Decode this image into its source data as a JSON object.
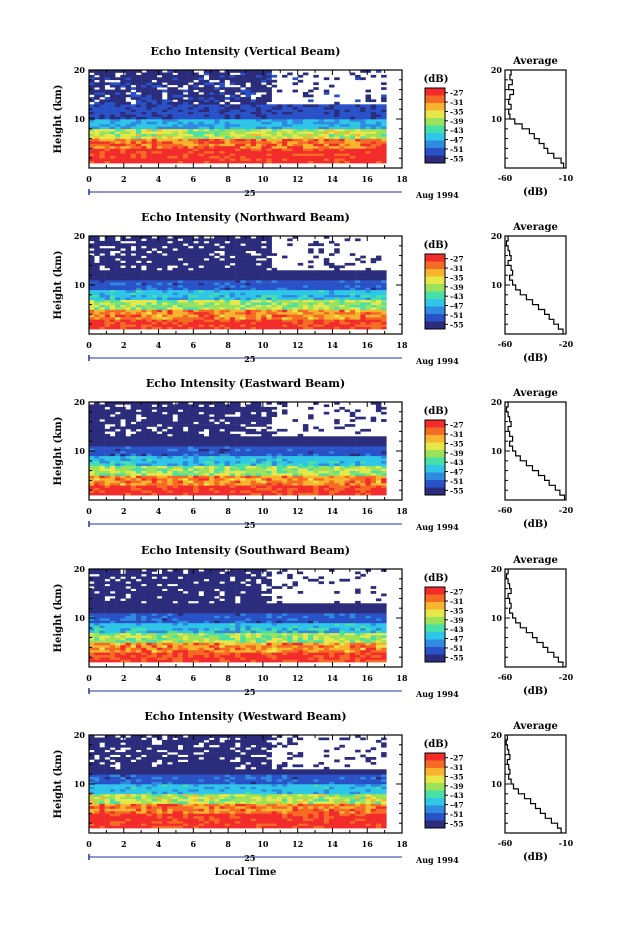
{
  "figure": {
    "xlabel": "Local Time",
    "date_label": "Aug 1994",
    "day_label": "25",
    "ylabel": "Height (km)",
    "colorbar_unit": "(dB)",
    "average_title": "Average",
    "average_xlabel": "(dB)"
  },
  "colors": {
    "colormap": [
      "#2b2c7c",
      "#2a52c8",
      "#2f8ae0",
      "#2fc6e8",
      "#47e0a8",
      "#9ae25a",
      "#e6e84a",
      "#f9b42e",
      "#f56b25",
      "#f22b2b"
    ]
  },
  "chart_data": [
    {
      "type": "heatmap",
      "title": "Echo Intensity (Vertical Beam)",
      "xlabel": "",
      "ylabel": "Height (km)",
      "xlim": [
        0,
        18
      ],
      "ylim": [
        0,
        20
      ],
      "data_x_range": [
        0,
        17
      ],
      "x_ticks": [
        "0",
        "2",
        "4",
        "6",
        "8",
        "10",
        "12",
        "14",
        "16",
        "18"
      ],
      "y_ticks": [
        "10",
        "20"
      ],
      "colorbar": {
        "label": "(dB)",
        "ticks": [
          "-27",
          "-31",
          "-35",
          "-39",
          "-43",
          "-47",
          "-51",
          "-55"
        ],
        "range": [
          -57,
          -25
        ]
      },
      "profile_db_by_height": [
        {
          "h": [
            1,
            4
          ],
          "db": -26
        },
        {
          "h": [
            4,
            6
          ],
          "db": -30
        },
        {
          "h": [
            6,
            8
          ],
          "db": -38
        },
        {
          "h": [
            8,
            10
          ],
          "db": -47
        },
        {
          "h": [
            10,
            13
          ],
          "db": -53
        },
        {
          "h": [
            13,
            20
          ],
          "db": -55
        }
      ],
      "average": {
        "title": "Average",
        "xlabel": "(dB)",
        "xlim": [
          -60,
          -10
        ],
        "x_ticks": [
          "-60",
          "-10"
        ],
        "y_ticks": [
          "10",
          "20"
        ],
        "heights": [
          1,
          2,
          3,
          4,
          5,
          6,
          7,
          8,
          9,
          10,
          11,
          12,
          13,
          14,
          15,
          16,
          17,
          18,
          19,
          20
        ],
        "values": [
          -12,
          -14,
          -20,
          -25,
          -28,
          -32,
          -36,
          -40,
          -46,
          -52,
          -56,
          -57,
          -55,
          -57,
          -56,
          -53,
          -57,
          -54,
          -56,
          -55
        ]
      }
    },
    {
      "type": "heatmap",
      "title": "Echo Intensity (Northward Beam)",
      "xlabel": "",
      "ylabel": "Height (km)",
      "xlim": [
        0,
        18
      ],
      "ylim": [
        0,
        20
      ],
      "data_x_range": [
        0,
        17
      ],
      "x_ticks": [
        "0",
        "2",
        "4",
        "6",
        "8",
        "10",
        "12",
        "14",
        "16",
        "18"
      ],
      "y_ticks": [
        "10",
        "20"
      ],
      "colorbar": {
        "label": "(dB)",
        "ticks": [
          "-27",
          "-31",
          "-35",
          "-39",
          "-43",
          "-47",
          "-51",
          "-55"
        ],
        "range": [
          -57,
          -25
        ]
      },
      "profile_db_by_height": [
        {
          "h": [
            1,
            3
          ],
          "db": -27
        },
        {
          "h": [
            3,
            5
          ],
          "db": -31
        },
        {
          "h": [
            5,
            7
          ],
          "db": -39
        },
        {
          "h": [
            7,
            9
          ],
          "db": -46
        },
        {
          "h": [
            9,
            11
          ],
          "db": -52
        },
        {
          "h": [
            11,
            20
          ],
          "db": -56
        }
      ],
      "average": {
        "title": "Average",
        "xlabel": "(dB)",
        "xlim": [
          -60,
          -20
        ],
        "x_ticks": [
          "-60",
          "-20"
        ],
        "y_ticks": [
          "10",
          "20"
        ],
        "heights": [
          1,
          2,
          3,
          4,
          5,
          6,
          7,
          8,
          9,
          10,
          11,
          12,
          13,
          14,
          15,
          16,
          17,
          18,
          19,
          20
        ],
        "values": [
          -22,
          -25,
          -28,
          -31,
          -34,
          -38,
          -42,
          -46,
          -50,
          -53,
          -55,
          -57,
          -55,
          -56,
          -58,
          -56,
          -57,
          -58,
          -59,
          -58
        ]
      }
    },
    {
      "type": "heatmap",
      "title": "Echo Intensity (Eastward Beam)",
      "xlabel": "",
      "ylabel": "Height (km)",
      "xlim": [
        0,
        18
      ],
      "ylim": [
        0,
        20
      ],
      "data_x_range": [
        0,
        17
      ],
      "x_ticks": [
        "0",
        "2",
        "4",
        "6",
        "8",
        "10",
        "12",
        "14",
        "16",
        "18"
      ],
      "y_ticks": [
        "10",
        "20"
      ],
      "colorbar": {
        "label": "(dB)",
        "ticks": [
          "-27",
          "-31",
          "-35",
          "-39",
          "-43",
          "-47",
          "-51",
          "-55"
        ],
        "range": [
          -57,
          -25
        ]
      },
      "profile_db_by_height": [
        {
          "h": [
            1,
            3
          ],
          "db": -27
        },
        {
          "h": [
            3,
            5
          ],
          "db": -31
        },
        {
          "h": [
            5,
            7
          ],
          "db": -39
        },
        {
          "h": [
            7,
            9
          ],
          "db": -46
        },
        {
          "h": [
            9,
            11
          ],
          "db": -52
        },
        {
          "h": [
            11,
            20
          ],
          "db": -56
        }
      ],
      "average": {
        "title": "Average",
        "xlabel": "(dB)",
        "xlim": [
          -60,
          -20
        ],
        "x_ticks": [
          "-60",
          "-20"
        ],
        "y_ticks": [
          "10",
          "20"
        ],
        "heights": [
          1,
          2,
          3,
          4,
          5,
          6,
          7,
          8,
          9,
          10,
          11,
          12,
          13,
          14,
          15,
          16,
          17,
          18,
          19,
          20
        ],
        "values": [
          -21,
          -24,
          -27,
          -31,
          -34,
          -38,
          -42,
          -46,
          -50,
          -53,
          -55,
          -57,
          -55,
          -57,
          -58,
          -56,
          -57,
          -58,
          -59,
          -58
        ]
      }
    },
    {
      "type": "heatmap",
      "title": "Echo Intensity (Southward Beam)",
      "xlabel": "",
      "ylabel": "Height (km)",
      "xlim": [
        0,
        18
      ],
      "ylim": [
        0,
        20
      ],
      "data_x_range": [
        0,
        17
      ],
      "x_ticks": [
        "0",
        "2",
        "4",
        "6",
        "8",
        "10",
        "12",
        "14",
        "16",
        "18"
      ],
      "y_ticks": [
        "10",
        "20"
      ],
      "colorbar": {
        "label": "(dB)",
        "ticks": [
          "-27",
          "-31",
          "-35",
          "-39",
          "-43",
          "-47",
          "-51",
          "-55"
        ],
        "range": [
          -57,
          -25
        ]
      },
      "profile_db_by_height": [
        {
          "h": [
            1,
            3
          ],
          "db": -27
        },
        {
          "h": [
            3,
            5
          ],
          "db": -31
        },
        {
          "h": [
            5,
            7
          ],
          "db": -39
        },
        {
          "h": [
            7,
            9
          ],
          "db": -46
        },
        {
          "h": [
            9,
            11
          ],
          "db": -52
        },
        {
          "h": [
            11,
            20
          ],
          "db": -56
        }
      ],
      "average": {
        "title": "Average",
        "xlabel": "(dB)",
        "xlim": [
          -60,
          -20
        ],
        "x_ticks": [
          "-60",
          "-20"
        ],
        "y_ticks": [
          "10",
          "20"
        ],
        "heights": [
          1,
          2,
          3,
          4,
          5,
          6,
          7,
          8,
          9,
          10,
          11,
          12,
          13,
          14,
          15,
          16,
          17,
          18,
          19,
          20
        ],
        "values": [
          -22,
          -25,
          -28,
          -32,
          -35,
          -39,
          -42,
          -46,
          -50,
          -53,
          -55,
          -57,
          -56,
          -57,
          -58,
          -56,
          -57,
          -58,
          -59,
          -58
        ]
      }
    },
    {
      "type": "heatmap",
      "title": "Echo Intensity (Westward Beam)",
      "xlabel": "Local Time",
      "ylabel": "Height (km)",
      "xlim": [
        0,
        18
      ],
      "ylim": [
        0,
        20
      ],
      "data_x_range": [
        0,
        17
      ],
      "x_ticks": [
        "0",
        "2",
        "4",
        "6",
        "8",
        "10",
        "12",
        "14",
        "16",
        "18"
      ],
      "y_ticks": [
        "10",
        "20"
      ],
      "colorbar": {
        "label": "(dB)",
        "ticks": [
          "-27",
          "-31",
          "-35",
          "-39",
          "-43",
          "-47",
          "-51",
          "-55"
        ],
        "range": [
          -57,
          -25
        ]
      },
      "profile_db_by_height": [
        {
          "h": [
            1,
            4
          ],
          "db": -26
        },
        {
          "h": [
            4,
            6
          ],
          "db": -30
        },
        {
          "h": [
            6,
            8
          ],
          "db": -38
        },
        {
          "h": [
            8,
            10
          ],
          "db": -46
        },
        {
          "h": [
            10,
            12
          ],
          "db": -52
        },
        {
          "h": [
            12,
            20
          ],
          "db": -56
        }
      ],
      "average": {
        "title": "Average",
        "xlabel": "(dB)",
        "xlim": [
          -60,
          -10
        ],
        "x_ticks": [
          "-60",
          "-10"
        ],
        "y_ticks": [
          "10",
          "20"
        ],
        "heights": [
          1,
          2,
          3,
          4,
          5,
          6,
          7,
          8,
          9,
          10,
          11,
          12,
          13,
          14,
          15,
          16,
          17,
          18,
          19,
          20
        ],
        "values": [
          -14,
          -17,
          -22,
          -27,
          -31,
          -35,
          -39,
          -44,
          -49,
          -53,
          -55,
          -57,
          -56,
          -57,
          -58,
          -56,
          -57,
          -58,
          -59,
          -58
        ]
      }
    }
  ]
}
